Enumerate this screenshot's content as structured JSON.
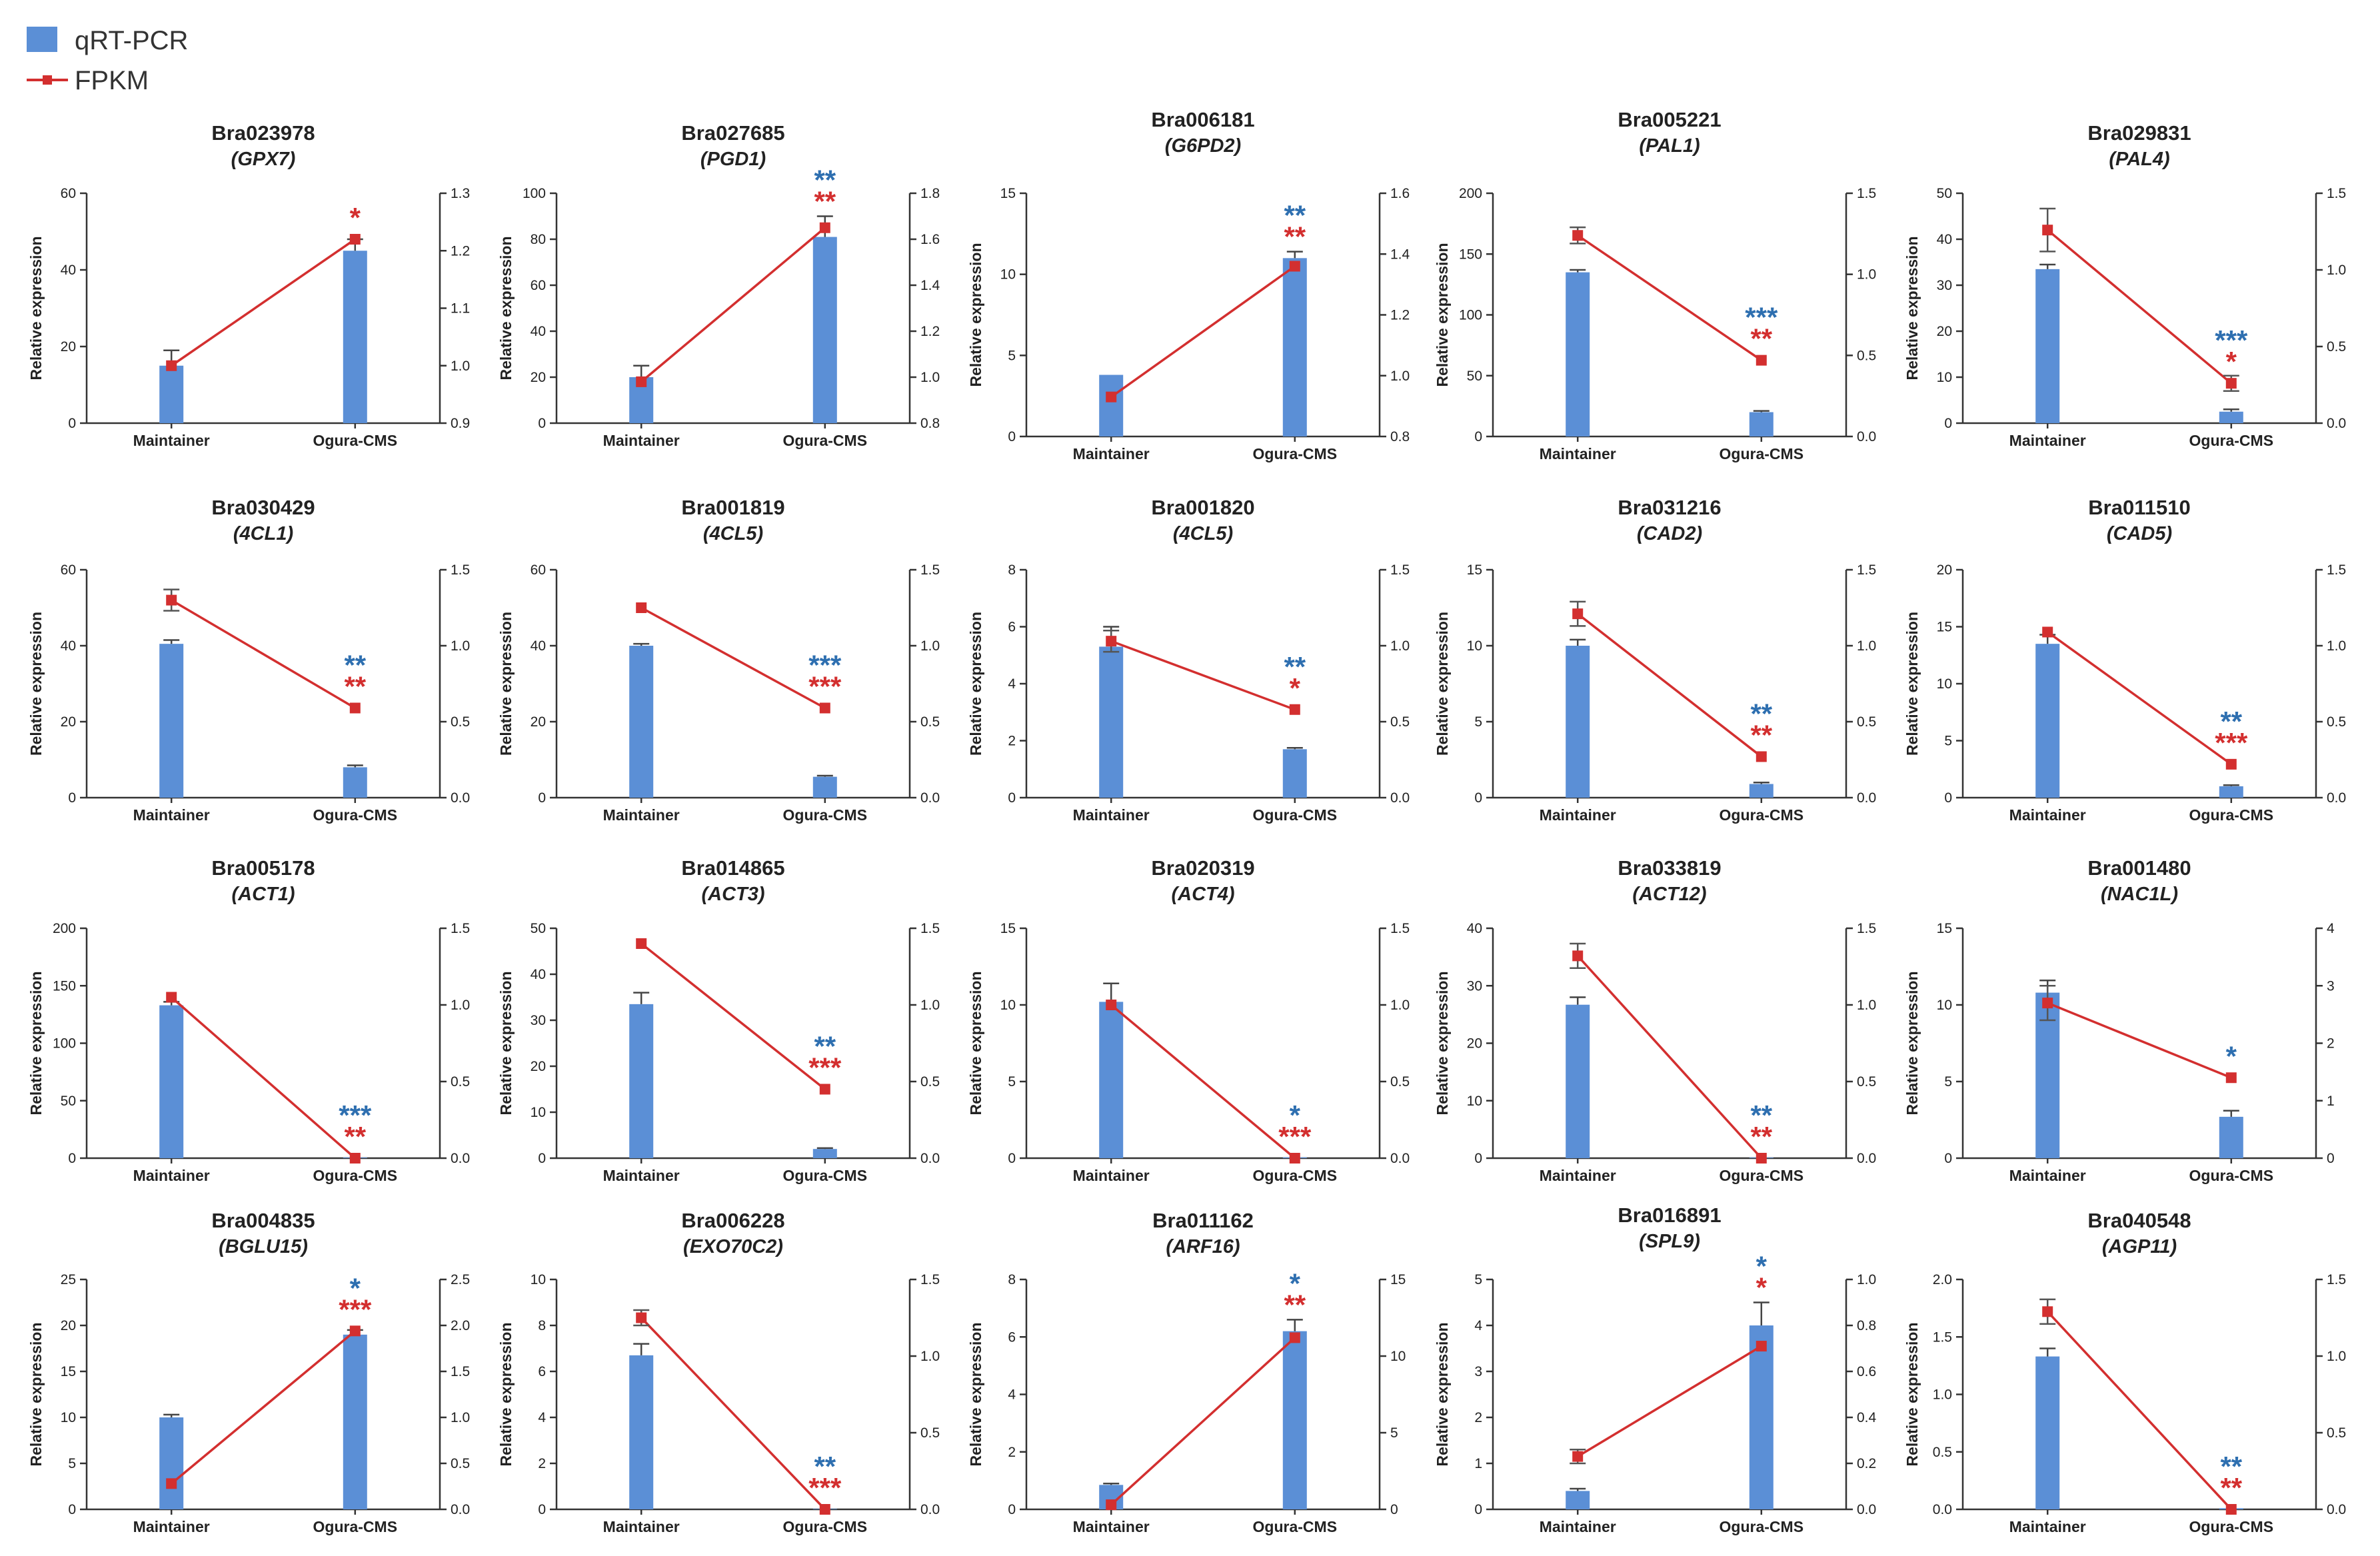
{
  "legend": {
    "bar_label": "qRT-PCR",
    "line_label": "FPKM",
    "bar_color": "#5b8fd6",
    "line_color": "#d32f2f"
  },
  "y_axis_label": "Relative expression",
  "colors": {
    "bar": "#5b8fd6",
    "line": "#d32f2f",
    "sig_bar": "#2e6fb0",
    "sig_line": "#d32f2f"
  },
  "chart_data": [
    {
      "type": "bar",
      "title": "Bra023978",
      "subtitle": "(GPX7)",
      "categories": [
        "Maintainer",
        "Ogura-CMS"
      ],
      "ylabel": "Relative expression",
      "ylim": [
        0,
        60
      ],
      "yticks": [
        "0",
        "20",
        "40",
        "60"
      ],
      "y2lim": [
        0.9,
        1.3
      ],
      "y2ticks": [
        "0.9",
        "1.0",
        "1.1",
        "1.2",
        "1.3"
      ],
      "series": [
        {
          "name": "qRT-PCR",
          "values": [
            15,
            45
          ],
          "errors": [
            4,
            3
          ]
        },
        {
          "name": "FPKM",
          "values": [
            1.0,
            1.22
          ],
          "errors": [
            0,
            0
          ]
        }
      ],
      "sig_bar": "",
      "sig_line": "*"
    },
    {
      "type": "bar",
      "title": "Bra027685",
      "subtitle": "(PGD1)",
      "categories": [
        "Maintainer",
        "Ogura-CMS"
      ],
      "ylabel": "Relative expression",
      "ylim": [
        0,
        100
      ],
      "yticks": [
        "0",
        "20",
        "40",
        "60",
        "80",
        "100"
      ],
      "y2lim": [
        0.8,
        1.8
      ],
      "y2ticks": [
        "0.8",
        "1.0",
        "1.2",
        "1.4",
        "1.6",
        "1.8"
      ],
      "series": [
        {
          "name": "qRT-PCR",
          "values": [
            20,
            81
          ],
          "errors": [
            5,
            9
          ]
        },
        {
          "name": "FPKM",
          "values": [
            0.98,
            1.65
          ],
          "errors": [
            0,
            0
          ]
        }
      ],
      "sig_bar": "**",
      "sig_line": "**"
    },
    {
      "type": "bar",
      "title": "Bra006181",
      "subtitle": "(G6PD2)",
      "categories": [
        "Maintainer",
        "Ogura-CMS"
      ],
      "ylabel": "Relative expression",
      "ylim": [
        0,
        15
      ],
      "yticks": [
        "0",
        "5",
        "10",
        "15"
      ],
      "y2lim": [
        0.8,
        1.6
      ],
      "y2ticks": [
        "0.8",
        "1.0",
        "1.2",
        "1.4",
        "1.6"
      ],
      "series": [
        {
          "name": "qRT-PCR",
          "values": [
            3.8,
            11
          ],
          "errors": [
            0,
            0.4
          ]
        },
        {
          "name": "FPKM",
          "values": [
            0.93,
            1.36
          ],
          "errors": [
            0,
            0
          ]
        }
      ],
      "sig_bar": "**",
      "sig_line": "**"
    },
    {
      "type": "bar",
      "title": "Bra005221",
      "subtitle": "(PAL1)",
      "categories": [
        "Maintainer",
        "Ogura-CMS"
      ],
      "ylabel": "Relative expression",
      "ylim": [
        0,
        200
      ],
      "yticks": [
        "0",
        "50",
        "100",
        "150",
        "200"
      ],
      "y2lim": [
        0,
        1.5
      ],
      "y2ticks": [
        "0.0",
        "0.5",
        "1.0",
        "1.5"
      ],
      "series": [
        {
          "name": "qRT-PCR",
          "values": [
            135,
            20
          ],
          "errors": [
            2,
            1
          ]
        },
        {
          "name": "FPKM",
          "values": [
            1.24,
            0.47
          ],
          "errors": [
            0.05,
            0
          ]
        }
      ],
      "sig_bar": "***",
      "sig_line": "**"
    },
    {
      "type": "bar",
      "title": "Bra029831",
      "subtitle": "(PAL4)",
      "categories": [
        "Maintainer",
        "Ogura-CMS"
      ],
      "ylabel": "Relative expression",
      "ylim": [
        0,
        50
      ],
      "yticks": [
        "0",
        "10",
        "20",
        "30",
        "40",
        "50"
      ],
      "y2lim": [
        0,
        1.5
      ],
      "y2ticks": [
        "0.0",
        "0.5",
        "1.0",
        "1.5"
      ],
      "series": [
        {
          "name": "qRT-PCR",
          "values": [
            33.5,
            2.5
          ],
          "errors": [
            1,
            0.5
          ]
        },
        {
          "name": "FPKM",
          "values": [
            1.26,
            0.26
          ],
          "errors": [
            0.14,
            0.05
          ]
        }
      ],
      "sig_bar": "***",
      "sig_line": "*"
    },
    {
      "type": "bar",
      "title": "Bra030429",
      "subtitle": "(4CL1)",
      "categories": [
        "Maintainer",
        "Ogura-CMS"
      ],
      "ylabel": "Relative expression",
      "ylim": [
        0,
        60
      ],
      "yticks": [
        "0",
        "20",
        "40",
        "60"
      ],
      "y2lim": [
        0,
        1.5
      ],
      "y2ticks": [
        "0.0",
        "0.5",
        "1.0",
        "1.5"
      ],
      "series": [
        {
          "name": "qRT-PCR",
          "values": [
            40.5,
            8
          ],
          "errors": [
            1,
            0.5
          ]
        },
        {
          "name": "FPKM",
          "values": [
            1.3,
            0.59
          ],
          "errors": [
            0.07,
            0
          ]
        }
      ],
      "sig_bar": "**",
      "sig_line": "**"
    },
    {
      "type": "bar",
      "title": "Bra001819",
      "subtitle": "(4CL5)",
      "categories": [
        "Maintainer",
        "Ogura-CMS"
      ],
      "ylabel": "Relative expression",
      "ylim": [
        0,
        60
      ],
      "yticks": [
        "0",
        "20",
        "40",
        "60"
      ],
      "y2lim": [
        0,
        1.5
      ],
      "y2ticks": [
        "0.0",
        "0.5",
        "1.0",
        "1.5"
      ],
      "series": [
        {
          "name": "qRT-PCR",
          "values": [
            40,
            5.5
          ],
          "errors": [
            0.5,
            0.3
          ]
        },
        {
          "name": "FPKM",
          "values": [
            1.25,
            0.59
          ],
          "errors": [
            0,
            0
          ]
        }
      ],
      "sig_bar": "***",
      "sig_line": "***"
    },
    {
      "type": "bar",
      "title": "Bra001820",
      "subtitle": "(4CL5)",
      "categories": [
        "Maintainer",
        "Ogura-CMS"
      ],
      "ylabel": "Relative expression",
      "ylim": [
        0,
        8
      ],
      "yticks": [
        "0",
        "2",
        "4",
        "6",
        "8"
      ],
      "y2lim": [
        0,
        1.5
      ],
      "y2ticks": [
        "0.0",
        "0.5",
        "1.0",
        "1.5"
      ],
      "series": [
        {
          "name": "qRT-PCR",
          "values": [
            5.3,
            1.7
          ],
          "errors": [
            0.7,
            0.05
          ]
        },
        {
          "name": "FPKM",
          "values": [
            1.03,
            0.58
          ],
          "errors": [
            0.07,
            0
          ]
        }
      ],
      "sig_bar": "**",
      "sig_line": "*"
    },
    {
      "type": "bar",
      "title": "Bra031216",
      "subtitle": "(CAD2)",
      "categories": [
        "Maintainer",
        "Ogura-CMS"
      ],
      "ylabel": "Relative expression",
      "ylim": [
        0,
        15
      ],
      "yticks": [
        "0",
        "5",
        "10",
        "15"
      ],
      "y2lim": [
        0,
        1.5
      ],
      "y2ticks": [
        "0.0",
        "0.5",
        "1.0",
        "1.5"
      ],
      "series": [
        {
          "name": "qRT-PCR",
          "values": [
            10,
            0.9
          ],
          "errors": [
            0.4,
            0.1
          ]
        },
        {
          "name": "FPKM",
          "values": [
            1.21,
            0.27
          ],
          "errors": [
            0.08,
            0
          ]
        }
      ],
      "sig_bar": "**",
      "sig_line": "**"
    },
    {
      "type": "bar",
      "title": "Bra011510",
      "subtitle": "(CAD5)",
      "categories": [
        "Maintainer",
        "Ogura-CMS"
      ],
      "ylabel": "Relative expression",
      "ylim": [
        0,
        20
      ],
      "yticks": [
        "0",
        "5",
        "10",
        "15",
        "20"
      ],
      "y2lim": [
        0,
        1.5
      ],
      "y2ticks": [
        "0.0",
        "0.5",
        "1.0",
        "1.5"
      ],
      "series": [
        {
          "name": "qRT-PCR",
          "values": [
            13.5,
            1
          ],
          "errors": [
            0.8,
            0.1
          ]
        },
        {
          "name": "FPKM",
          "values": [
            1.09,
            0.22
          ],
          "errors": [
            0,
            0
          ]
        }
      ],
      "sig_bar": "**",
      "sig_line": "***"
    },
    {
      "type": "bar",
      "title": "Bra005178",
      "subtitle": "(ACT1)",
      "categories": [
        "Maintainer",
        "Ogura-CMS"
      ],
      "ylabel": "Relative expression",
      "ylim": [
        0,
        200
      ],
      "yticks": [
        "0",
        "50",
        "100",
        "150",
        "200"
      ],
      "y2lim": [
        0,
        1.5
      ],
      "y2ticks": [
        "0.0",
        "0.5",
        "1.0",
        "1.5"
      ],
      "series": [
        {
          "name": "qRT-PCR",
          "values": [
            133,
            0.5
          ],
          "errors": [
            3,
            0
          ]
        },
        {
          "name": "FPKM",
          "values": [
            1.05,
            0.0
          ],
          "errors": [
            0,
            0
          ]
        }
      ],
      "sig_bar": "***",
      "sig_line": "**"
    },
    {
      "type": "bar",
      "title": "Bra014865",
      "subtitle": "(ACT3)",
      "categories": [
        "Maintainer",
        "Ogura-CMS"
      ],
      "ylabel": "Relative expression",
      "ylim": [
        0,
        50
      ],
      "yticks": [
        "0",
        "10",
        "20",
        "30",
        "40",
        "50"
      ],
      "y2lim": [
        0,
        1.5
      ],
      "y2ticks": [
        "0.0",
        "0.5",
        "1.0",
        "1.5"
      ],
      "series": [
        {
          "name": "qRT-PCR",
          "values": [
            33.5,
            2
          ],
          "errors": [
            2.5,
            0.2
          ]
        },
        {
          "name": "FPKM",
          "values": [
            1.4,
            0.45
          ],
          "errors": [
            0,
            0
          ]
        }
      ],
      "sig_bar": "**",
      "sig_line": "***"
    },
    {
      "type": "bar",
      "title": "Bra020319",
      "subtitle": "(ACT4)",
      "categories": [
        "Maintainer",
        "Ogura-CMS"
      ],
      "ylabel": "Relative expression",
      "ylim": [
        0,
        15
      ],
      "yticks": [
        "0",
        "5",
        "10",
        "15"
      ],
      "y2lim": [
        0,
        1.5
      ],
      "y2ticks": [
        "0.0",
        "0.5",
        "1.0",
        "1.5"
      ],
      "series": [
        {
          "name": "qRT-PCR",
          "values": [
            10.2,
            0.05
          ],
          "errors": [
            1.2,
            0
          ]
        },
        {
          "name": "FPKM",
          "values": [
            1.0,
            0.0
          ],
          "errors": [
            0,
            0
          ]
        }
      ],
      "sig_bar": "*",
      "sig_line": "***"
    },
    {
      "type": "bar",
      "title": "Bra033819",
      "subtitle": "(ACT12)",
      "categories": [
        "Maintainer",
        "Ogura-CMS"
      ],
      "ylabel": "Relative expression",
      "ylim": [
        0,
        40
      ],
      "yticks": [
        "0",
        "10",
        "20",
        "30",
        "40"
      ],
      "y2lim": [
        0,
        1.5
      ],
      "y2ticks": [
        "0.0",
        "0.5",
        "1.0",
        "1.5"
      ],
      "series": [
        {
          "name": "qRT-PCR",
          "values": [
            26.7,
            0.1
          ],
          "errors": [
            1.3,
            0
          ]
        },
        {
          "name": "FPKM",
          "values": [
            1.32,
            0.0
          ],
          "errors": [
            0.08,
            0
          ]
        }
      ],
      "sig_bar": "**",
      "sig_line": "**"
    },
    {
      "type": "bar",
      "title": "Bra001480",
      "subtitle": "(NAC1L)",
      "categories": [
        "Maintainer",
        "Ogura-CMS"
      ],
      "ylabel": "Relative expression",
      "ylim": [
        0,
        15
      ],
      "yticks": [
        "0",
        "5",
        "10",
        "15"
      ],
      "y2lim": [
        0,
        4
      ],
      "y2ticks": [
        "0",
        "1",
        "2",
        "3",
        "4"
      ],
      "series": [
        {
          "name": "qRT-PCR",
          "values": [
            10.8,
            2.7
          ],
          "errors": [
            0.8,
            0.4
          ]
        },
        {
          "name": "FPKM",
          "values": [
            2.7,
            1.4
          ],
          "errors": [
            0.3,
            0
          ]
        }
      ],
      "sig_bar": "*",
      "sig_line": ""
    },
    {
      "type": "bar",
      "title": "Bra004835",
      "subtitle": "(BGLU15)",
      "categories": [
        "Maintainer",
        "Ogura-CMS"
      ],
      "ylabel": "Relative expression",
      "ylim": [
        0,
        25
      ],
      "yticks": [
        "0",
        "5",
        "10",
        "15",
        "20",
        "25"
      ],
      "y2lim": [
        0,
        2.5
      ],
      "y2ticks": [
        "0.0",
        "0.5",
        "1.0",
        "1.5",
        "2.0",
        "2.5"
      ],
      "series": [
        {
          "name": "qRT-PCR",
          "values": [
            10,
            19
          ],
          "errors": [
            0.3,
            0.5
          ]
        },
        {
          "name": "FPKM",
          "values": [
            0.28,
            1.94
          ],
          "errors": [
            0,
            0
          ]
        }
      ],
      "sig_bar": "*",
      "sig_line": "***"
    },
    {
      "type": "bar",
      "title": "Bra006228",
      "subtitle": "(EXO70C2)",
      "categories": [
        "Maintainer",
        "Ogura-CMS"
      ],
      "ylabel": "Relative expression",
      "ylim": [
        0,
        10
      ],
      "yticks": [
        "0",
        "2",
        "4",
        "6",
        "8",
        "10"
      ],
      "y2lim": [
        0,
        1.5
      ],
      "y2ticks": [
        "0.0",
        "0.5",
        "1.0",
        "1.5"
      ],
      "series": [
        {
          "name": "qRT-PCR",
          "values": [
            6.7,
            0.02
          ],
          "errors": [
            0.5,
            0
          ]
        },
        {
          "name": "FPKM",
          "values": [
            1.25,
            0.0
          ],
          "errors": [
            0.05,
            0
          ]
        }
      ],
      "sig_bar": "**",
      "sig_line": "***"
    },
    {
      "type": "bar",
      "title": "Bra011162",
      "subtitle": "(ARF16)",
      "categories": [
        "Maintainer",
        "Ogura-CMS"
      ],
      "ylabel": "Relative expression",
      "ylim": [
        0,
        8
      ],
      "yticks": [
        "0",
        "2",
        "4",
        "6",
        "8"
      ],
      "y2lim": [
        0,
        15
      ],
      "y2ticks": [
        "0",
        "5",
        "10",
        "15"
      ],
      "series": [
        {
          "name": "qRT-PCR",
          "values": [
            0.85,
            6.2
          ],
          "errors": [
            0.05,
            0.4
          ]
        },
        {
          "name": "FPKM",
          "values": [
            0.3,
            11.2
          ],
          "errors": [
            0,
            0
          ]
        }
      ],
      "sig_bar": "*",
      "sig_line": "**"
    },
    {
      "type": "bar",
      "title": "Bra016891",
      "subtitle": "(SPL9)",
      "categories": [
        "Maintainer",
        "Ogura-CMS"
      ],
      "ylabel": "Relative expression",
      "ylim": [
        0,
        5
      ],
      "yticks": [
        "0",
        "1",
        "2",
        "3",
        "4",
        "5"
      ],
      "y2lim": [
        0,
        1.0
      ],
      "y2ticks": [
        "0.0",
        "0.2",
        "0.4",
        "0.6",
        "0.8",
        "1.0"
      ],
      "series": [
        {
          "name": "qRT-PCR",
          "values": [
            0.4,
            4
          ],
          "errors": [
            0.05,
            0.5
          ]
        },
        {
          "name": "FPKM",
          "values": [
            0.23,
            0.71
          ],
          "errors": [
            0.03,
            0
          ]
        }
      ],
      "sig_bar": "*",
      "sig_line": "*"
    },
    {
      "type": "bar",
      "title": "Bra040548",
      "subtitle": "(AGP11)",
      "categories": [
        "Maintainer",
        "Ogura-CMS"
      ],
      "ylabel": "Relative expression",
      "ylim": [
        0,
        2.0
      ],
      "yticks": [
        "0.0",
        "0.5",
        "1.0",
        "1.5",
        "2.0"
      ],
      "y2lim": [
        0,
        1.5
      ],
      "y2ticks": [
        "0.0",
        "0.5",
        "1.0",
        "1.5"
      ],
      "series": [
        {
          "name": "qRT-PCR",
          "values": [
            1.33,
            0.01
          ],
          "errors": [
            0.07,
            0
          ]
        },
        {
          "name": "FPKM",
          "values": [
            1.29,
            0.0
          ],
          "errors": [
            0.08,
            0
          ]
        }
      ],
      "sig_bar": "**",
      "sig_line": "**"
    }
  ]
}
